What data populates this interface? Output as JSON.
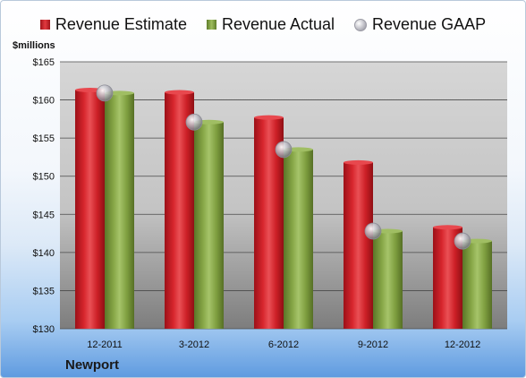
{
  "chart_data": {
    "type": "bar",
    "ylabel": "$millions",
    "categories": [
      "12-2011",
      "3-2012",
      "6-2012",
      "9-2012",
      "12-2012"
    ],
    "series": [
      {
        "name": "Revenue Estimate",
        "type": "bar",
        "color": "#d32027",
        "values": [
          161.3,
          161.0,
          157.7,
          151.8,
          143.3
        ]
      },
      {
        "name": "Revenue Actual",
        "type": "bar",
        "color": "#8aaa48",
        "values": [
          160.9,
          157.1,
          153.5,
          142.8,
          141.5
        ]
      },
      {
        "name": "Revenue GAAP",
        "type": "marker",
        "color": "#b0b0b8",
        "values": [
          160.9,
          157.1,
          153.5,
          142.8,
          141.5
        ]
      }
    ],
    "ylim": [
      130,
      165
    ],
    "yticks": [
      130,
      135,
      140,
      145,
      150,
      155,
      160,
      165
    ],
    "ytick_labels": [
      "$130",
      "$135",
      "$140",
      "$145",
      "$150",
      "$155",
      "$160",
      "$165"
    ],
    "grid": true,
    "legend_position": "top"
  },
  "company": "Newport"
}
